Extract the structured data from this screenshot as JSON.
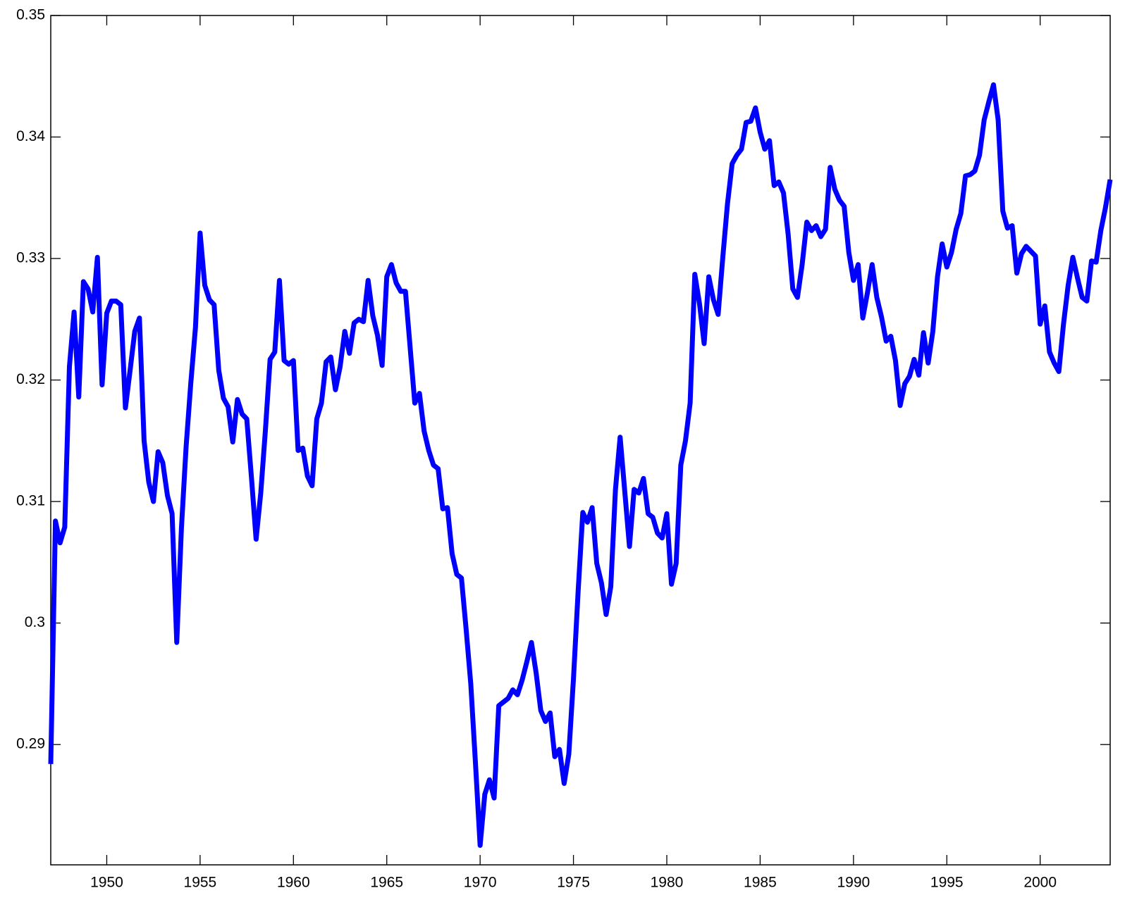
{
  "chart_data": {
    "type": "line",
    "x": [
      1947,
      1947.25,
      1947.5,
      1947.75,
      1948,
      1948.25,
      1948.5,
      1948.75,
      1949,
      1949.25,
      1949.5,
      1949.75,
      1950,
      1950.25,
      1950.5,
      1950.75,
      1951,
      1951.25,
      1951.5,
      1951.75,
      1952,
      1952.25,
      1952.5,
      1952.75,
      1953,
      1953.25,
      1953.5,
      1953.75,
      1954,
      1954.25,
      1954.5,
      1954.75,
      1955,
      1955.25,
      1955.5,
      1955.75,
      1956,
      1956.25,
      1956.5,
      1956.75,
      1957,
      1957.25,
      1957.5,
      1957.75,
      1958,
      1958.25,
      1958.5,
      1958.75,
      1959,
      1959.25,
      1959.5,
      1959.75,
      1960,
      1960.25,
      1960.5,
      1960.75,
      1961,
      1961.25,
      1961.5,
      1961.75,
      1962,
      1962.25,
      1962.5,
      1962.75,
      1963,
      1963.25,
      1963.5,
      1963.75,
      1964,
      1964.25,
      1964.5,
      1964.75,
      1965,
      1965.25,
      1965.5,
      1965.75,
      1966,
      1966.25,
      1966.5,
      1966.75,
      1967,
      1967.25,
      1967.5,
      1967.75,
      1968,
      1968.25,
      1968.5,
      1968.75,
      1969,
      1969.25,
      1969.5,
      1969.75,
      1970,
      1970.25,
      1970.5,
      1970.75,
      1971,
      1971.25,
      1971.5,
      1971.75,
      1972,
      1972.25,
      1972.5,
      1972.75,
      1973,
      1973.25,
      1973.5,
      1973.75,
      1974,
      1974.25,
      1974.5,
      1974.75,
      1975,
      1975.25,
      1975.5,
      1975.75,
      1976,
      1976.25,
      1976.5,
      1976.75,
      1977,
      1977.25,
      1977.5,
      1977.75,
      1978,
      1978.25,
      1978.5,
      1978.75,
      1979,
      1979.25,
      1979.5,
      1979.75,
      1980,
      1980.25,
      1980.5,
      1980.75,
      1981,
      1981.25,
      1981.5,
      1981.75,
      1982,
      1982.25,
      1982.5,
      1982.75,
      1983,
      1983.25,
      1983.5,
      1983.75,
      1984,
      1984.25,
      1984.5,
      1984.75,
      1985,
      1985.25,
      1985.5,
      1985.75,
      1986,
      1986.25,
      1986.5,
      1986.75,
      1987,
      1987.25,
      1987.5,
      1987.75,
      1988,
      1988.25,
      1988.5,
      1988.75,
      1989,
      1989.25,
      1989.5,
      1989.75,
      1990,
      1990.25,
      1990.5,
      1990.75,
      1991,
      1991.25,
      1991.5,
      1991.75,
      1992,
      1992.25,
      1992.5,
      1992.75,
      1993,
      1993.25,
      1993.5,
      1993.75,
      1994,
      1994.25,
      1994.5,
      1994.75,
      1995,
      1995.25,
      1995.5,
      1995.75,
      1996,
      1996.25,
      1996.5,
      1996.75,
      1997,
      1997.25,
      1997.5,
      1997.75,
      1998,
      1998.25,
      1998.5,
      1998.75,
      1999,
      1999.25,
      1999.5,
      1999.75,
      2000,
      2000.25,
      2000.5,
      2000.75,
      2001,
      2001.25,
      2001.5,
      2001.75,
      2002,
      2002.25,
      2002.5,
      2002.75,
      2003,
      2003.25,
      2003.5,
      2003.75
    ],
    "values": [
      0.2884,
      0.3084,
      0.3066,
      0.3079,
      0.3211,
      0.3256,
      0.3186,
      0.3281,
      0.3275,
      0.3256,
      0.3301,
      0.3196,
      0.3255,
      0.3265,
      0.3265,
      0.3262,
      0.3177,
      0.3208,
      0.324,
      0.3251,
      0.315,
      0.3116,
      0.31,
      0.3141,
      0.3132,
      0.3105,
      0.309,
      0.2984,
      0.3078,
      0.3145,
      0.3197,
      0.3243,
      0.3321,
      0.3278,
      0.3266,
      0.3262,
      0.3208,
      0.3185,
      0.3178,
      0.3149,
      0.3184,
      0.3172,
      0.3168,
      0.312,
      0.3069,
      0.3107,
      0.3159,
      0.3217,
      0.3223,
      0.3282,
      0.3216,
      0.3213,
      0.3216,
      0.3142,
      0.3144,
      0.3121,
      0.3113,
      0.3168,
      0.3181,
      0.3215,
      0.3219,
      0.3192,
      0.3211,
      0.324,
      0.3222,
      0.3247,
      0.325,
      0.3248,
      0.3282,
      0.3253,
      0.3237,
      0.3212,
      0.3285,
      0.3295,
      0.328,
      0.3273,
      0.3273,
      0.3227,
      0.3181,
      0.3189,
      0.3158,
      0.3142,
      0.313,
      0.3127,
      0.3094,
      0.3095,
      0.3057,
      0.304,
      0.3037,
      0.2995,
      0.295,
      0.2885,
      0.2817,
      0.2859,
      0.2871,
      0.2856,
      0.2932,
      0.2935,
      0.2938,
      0.2945,
      0.2941,
      0.2953,
      0.2968,
      0.2984,
      0.2959,
      0.2928,
      0.2919,
      0.2926,
      0.289,
      0.2896,
      0.2868,
      0.2892,
      0.2954,
      0.3026,
      0.3091,
      0.3083,
      0.3095,
      0.3049,
      0.3033,
      0.3007,
      0.303,
      0.311,
      0.3153,
      0.3108,
      0.3063,
      0.311,
      0.3107,
      0.3119,
      0.309,
      0.3087,
      0.3074,
      0.307,
      0.309,
      0.3032,
      0.3049,
      0.313,
      0.315,
      0.3181,
      0.3287,
      0.3263,
      0.323,
      0.3285,
      0.3266,
      0.3254,
      0.3301,
      0.3345,
      0.3378,
      0.3385,
      0.339,
      0.3412,
      0.3413,
      0.3424,
      0.3404,
      0.339,
      0.3397,
      0.336,
      0.3363,
      0.3354,
      0.332,
      0.3275,
      0.3268,
      0.3295,
      0.333,
      0.3323,
      0.3327,
      0.3318,
      0.3324,
      0.3375,
      0.3357,
      0.3348,
      0.3343,
      0.3305,
      0.3282,
      0.3295,
      0.3251,
      0.3272,
      0.3295,
      0.3268,
      0.3252,
      0.3232,
      0.3236,
      0.3216,
      0.3179,
      0.3197,
      0.3203,
      0.3217,
      0.3204,
      0.3239,
      0.3214,
      0.324,
      0.3285,
      0.3312,
      0.3293,
      0.3305,
      0.3324,
      0.3337,
      0.3368,
      0.3369,
      0.3372,
      0.3385,
      0.3414,
      0.3429,
      0.3443,
      0.3414,
      0.3339,
      0.3325,
      0.3327,
      0.3288,
      0.3304,
      0.331,
      0.3306,
      0.3302,
      0.3246,
      0.3261,
      0.3223,
      0.3214,
      0.3207,
      0.3246,
      0.3278,
      0.3301,
      0.3284,
      0.3268,
      0.3265,
      0.3298,
      0.3297,
      0.3323,
      0.3342,
      0.3365
    ],
    "color": "#0000ff",
    "xlim": [
      1947,
      2003.75
    ],
    "xticks": [
      1950,
      1955,
      1960,
      1965,
      1970,
      1975,
      1980,
      1985,
      1990,
      1995,
      2000
    ],
    "ylim": [
      0.2801,
      0.35
    ],
    "yticks": [
      0.29,
      0.3,
      0.31,
      0.32,
      0.33,
      0.34,
      0.35
    ]
  }
}
